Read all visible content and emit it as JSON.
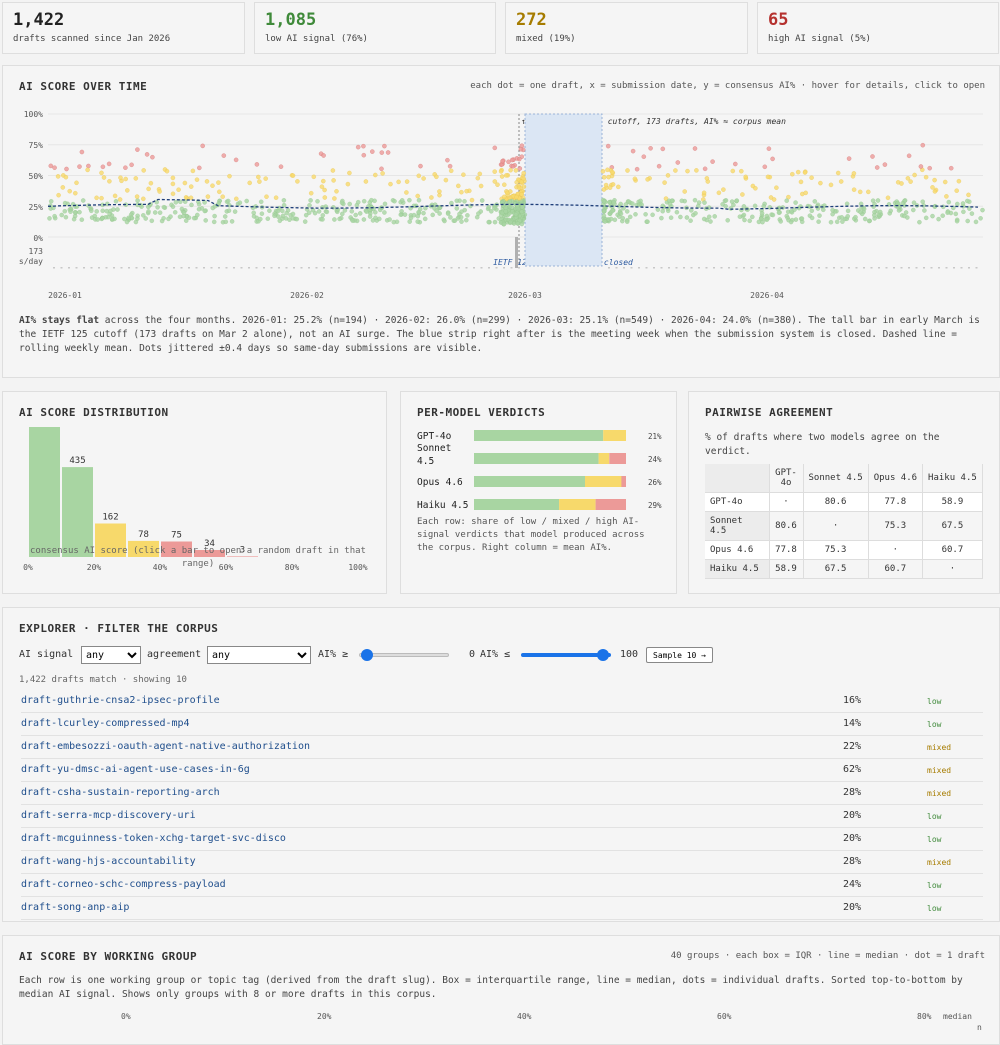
{
  "stats": [
    {
      "value": "1,422",
      "label": "drafts scanned since Jan 2026",
      "color": "#222222"
    },
    {
      "value": "1,085",
      "label": "low AI signal (76%)",
      "color": "#3f8a3a"
    },
    {
      "value": "272",
      "label": "mixed (19%)",
      "color": "#a67c00"
    },
    {
      "value": "65",
      "label": "high AI signal (5%)",
      "color": "#b5312e"
    }
  ],
  "timeline": {
    "title": "AI SCORE OVER TIME",
    "hint": "each dot = one draft, x = submission date, y = consensus AI% · hover for details, click to open",
    "y_ticks": [
      "100%",
      "75%",
      "50%",
      "25%",
      "0%"
    ],
    "count_label": "173",
    "count_unit": "s/day",
    "x_ticks": [
      "2026-01",
      "2026-02",
      "2026-03",
      "2026-04"
    ],
    "annotation": "↑ Mar 2: IETF 125 cutoff, 173 drafts, AI% ≈ corpus mean",
    "closed_label": "IETF 125 · submissions closed",
    "note_bold": "AI% stays flat",
    "note": " across the four months. 2026-01: 25.2% (n=194) · 2026-02: 26.0% (n=299) · 2026-03: 25.1% (n=549) · 2026-04: 24.0% (n=380). The tall bar in early March is the IETF 125 cutoff (173 drafts on Mar 2 alone), not an AI surge. The blue strip right after is the meeting week when the submission system is closed. Dashed line = rolling weekly mean. Dots jittered ±0.4 days so same-day submissions are visible."
  },
  "chart_data": [
    {
      "type": "bar",
      "title": "AI SCORE DISTRIBUTION",
      "categories": [
        "0-10%",
        "10-20%",
        "20-30%",
        "30-40%",
        "40-50%",
        "50-60%",
        "60-70%",
        "70-80%",
        "80-90%",
        "90-100%"
      ],
      "values": [
        635,
        435,
        162,
        78,
        75,
        34,
        3,
        0,
        0,
        0
      ],
      "x_ticks": [
        "0%",
        "20%",
        "40%",
        "60%",
        "80%",
        "100%"
      ],
      "xlabel": "consensus AI score (click a bar to open a random draft in that range)",
      "colors": [
        "#a8d5a2",
        "#a8d5a2",
        "#f7d96b",
        "#f7d96b",
        "#ec9a98",
        "#ec9a98",
        "#ec9a98",
        "#ec9a98",
        "#ec9a98",
        "#ec9a98"
      ]
    },
    {
      "type": "bar",
      "title": "PER-MODEL VERDICTS",
      "stacked": true,
      "orientation": "horizontal",
      "categories": [
        "GPT-4o",
        "Sonnet 4.5",
        "Opus 4.6",
        "Haiku 4.5"
      ],
      "series": [
        {
          "name": "low",
          "values": [
            0.85,
            0.82,
            0.73,
            0.56
          ],
          "color": "#a8d5a2"
        },
        {
          "name": "mixed",
          "values": [
            0.15,
            0.07,
            0.24,
            0.24
          ],
          "color": "#f7d96b"
        },
        {
          "name": "high",
          "values": [
            0.0,
            0.11,
            0.03,
            0.2
          ],
          "color": "#ec9a98"
        }
      ],
      "mean_labels": [
        "21%",
        "24%",
        "26%",
        "29%"
      ],
      "note": "Each row: share of low / mixed / high AI-signal verdicts that model produced across the corpus. Right column = mean AI%."
    }
  ],
  "pairwise": {
    "title": "PAIRWISE AGREEMENT",
    "subtitle": "% of drafts where two models agree on the verdict.",
    "headers": [
      "",
      "GPT-4o",
      "Sonnet 4.5",
      "Opus 4.6",
      "Haiku 4.5"
    ],
    "rows": [
      [
        "GPT-4o",
        "·",
        "80.6",
        "77.8",
        "58.9"
      ],
      [
        "Sonnet 4.5",
        "80.6",
        "·",
        "75.3",
        "67.5"
      ],
      [
        "Opus 4.6",
        "77.8",
        "75.3",
        "·",
        "60.7"
      ],
      [
        "Haiku 4.5",
        "58.9",
        "67.5",
        "60.7",
        "·"
      ]
    ]
  },
  "explorer": {
    "title": "EXPLORER · FILTER THE CORPUS",
    "signal_label": "AI signal",
    "signal_value": "any",
    "agreement_label": "agreement",
    "agreement_value": "any",
    "min_label": "AI% ≥",
    "min_value": "0",
    "max_label": "AI% ≤",
    "max_value": "100",
    "sample_button": "Sample 10 →",
    "count": "1,422 drafts match · showing 10",
    "rows": [
      {
        "name": "draft-guthrie-cnsa2-ipsec-profile",
        "pct": "16%",
        "label": "low"
      },
      {
        "name": "draft-lcurley-compressed-mp4",
        "pct": "14%",
        "label": "low"
      },
      {
        "name": "draft-embesozzi-oauth-agent-native-authorization",
        "pct": "22%",
        "label": "mixed"
      },
      {
        "name": "draft-yu-dmsc-ai-agent-use-cases-in-6g",
        "pct": "62%",
        "label": "mixed"
      },
      {
        "name": "draft-csha-sustain-reporting-arch",
        "pct": "28%",
        "label": "mixed"
      },
      {
        "name": "draft-serra-mcp-discovery-uri",
        "pct": "20%",
        "label": "low"
      },
      {
        "name": "draft-mcguinness-token-xchg-target-svc-disco",
        "pct": "20%",
        "label": "low"
      },
      {
        "name": "draft-wang-hjs-accountability",
        "pct": "28%",
        "label": "mixed"
      },
      {
        "name": "draft-corneo-schc-compress-payload",
        "pct": "24%",
        "label": "low"
      },
      {
        "name": "draft-song-anp-aip",
        "pct": "20%",
        "label": "low"
      }
    ]
  },
  "wg": {
    "title": "AI SCORE BY WORKING GROUP",
    "hint": "40 groups · each box = IQR · line = median · dot = 1 draft",
    "note": "Each row is one working group or topic tag (derived from the draft slug). Box = interquartile range, line = median, dots = individual drafts. Sorted top-to-bottom by median AI signal. Shows only groups with 8 or more drafts in this corpus.",
    "ticks": [
      "0%",
      "20%",
      "40%",
      "60%",
      "80%"
    ],
    "median_label": "median",
    "n_label": "n"
  },
  "colors": {
    "low": "#a8d5a2",
    "mixed": "#f7d96b",
    "high": "#ec9a98",
    "low_text": "#3f8a3a",
    "mixed_text": "#a67c00",
    "high_text": "#b5312e",
    "link": "#1f4e8c",
    "slider": "#1a73e8"
  }
}
